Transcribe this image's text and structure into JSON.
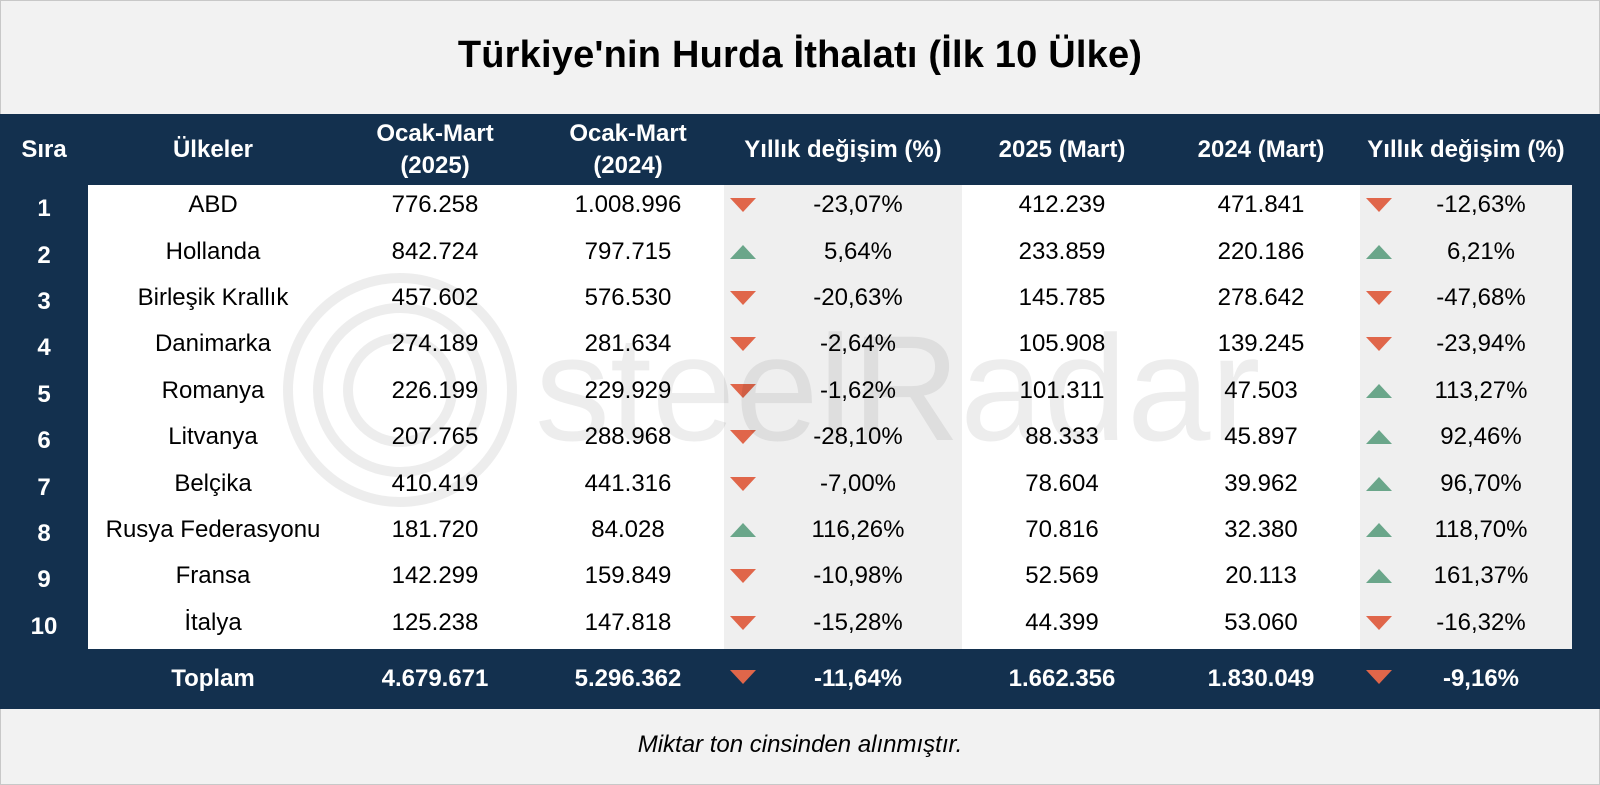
{
  "title": "Türkiye'nin Hurda İthalatı (İlk 10 Ülke)",
  "footnote": "Miktar ton cinsinden alınmıştır.",
  "watermark_text": "steelRadar",
  "colors": {
    "navy": "#13304e",
    "up": "#6aa68a",
    "down": "#e0664a",
    "stripe": "#efefef",
    "white": "#ffffff"
  },
  "headers": [
    "Sıra",
    "Ülkeler",
    "Ocak-Mart\n(2025)",
    "Ocak-Mart\n(2024)",
    "Yıllık değişim (%)",
    "2025 (Mart)",
    "2024 (Mart)",
    "Yıllık değişim (%)"
  ],
  "chart_data": {
    "type": "table",
    "title": "Türkiye'nin Hurda İthalatı (İlk 10 Ülke)",
    "unit_note": "Miktar ton cinsinden alınmıştır.",
    "rows": [
      {
        "rank": "1",
        "country": "ABD",
        "q_2025": "776.258",
        "q_2024": "1.008.996",
        "q_change": "-23,07%",
        "q_dir": "down",
        "m_2025": "412.239",
        "m_2024": "471.841",
        "m_change": "-12,63%",
        "m_dir": "down"
      },
      {
        "rank": "2",
        "country": "Hollanda",
        "q_2025": "842.724",
        "q_2024": "797.715",
        "q_change": "5,64%",
        "q_dir": "up",
        "m_2025": "233.859",
        "m_2024": "220.186",
        "m_change": "6,21%",
        "m_dir": "up"
      },
      {
        "rank": "3",
        "country": "Birleşik Krallık",
        "q_2025": "457.602",
        "q_2024": "576.530",
        "q_change": "-20,63%",
        "q_dir": "down",
        "m_2025": "145.785",
        "m_2024": "278.642",
        "m_change": "-47,68%",
        "m_dir": "down"
      },
      {
        "rank": "4",
        "country": "Danimarka",
        "q_2025": "274.189",
        "q_2024": "281.634",
        "q_change": "-2,64%",
        "q_dir": "down",
        "m_2025": "105.908",
        "m_2024": "139.245",
        "m_change": "-23,94%",
        "m_dir": "down"
      },
      {
        "rank": "5",
        "country": "Romanya",
        "q_2025": "226.199",
        "q_2024": "229.929",
        "q_change": "-1,62%",
        "q_dir": "down",
        "m_2025": "101.311",
        "m_2024": "47.503",
        "m_change": "113,27%",
        "m_dir": "up"
      },
      {
        "rank": "6",
        "country": "Litvanya",
        "q_2025": "207.765",
        "q_2024": "288.968",
        "q_change": "-28,10%",
        "q_dir": "down",
        "m_2025": "88.333",
        "m_2024": "45.897",
        "m_change": "92,46%",
        "m_dir": "up"
      },
      {
        "rank": "7",
        "country": "Belçika",
        "q_2025": "410.419",
        "q_2024": "441.316",
        "q_change": "-7,00%",
        "q_dir": "down",
        "m_2025": "78.604",
        "m_2024": "39.962",
        "m_change": "96,70%",
        "m_dir": "up"
      },
      {
        "rank": "8",
        "country": "Rusya Federasyonu",
        "q_2025": "181.720",
        "q_2024": "84.028",
        "q_change": "116,26%",
        "q_dir": "up",
        "m_2025": "70.816",
        "m_2024": "32.380",
        "m_change": "118,70%",
        "m_dir": "up"
      },
      {
        "rank": "9",
        "country": "Fransa",
        "q_2025": "142.299",
        "q_2024": "159.849",
        "q_change": "-10,98%",
        "q_dir": "down",
        "m_2025": "52.569",
        "m_2024": "20.113",
        "m_change": "161,37%",
        "m_dir": "up"
      },
      {
        "rank": "10",
        "country": "İtalya",
        "q_2025": "125.238",
        "q_2024": "147.818",
        "q_change": "-15,28%",
        "q_dir": "down",
        "m_2025": "44.399",
        "m_2024": "53.060",
        "m_change": "-16,32%",
        "m_dir": "down"
      }
    ],
    "total": {
      "label": "Toplam",
      "q_2025": "4.679.671",
      "q_2024": "5.296.362",
      "q_change": "-11,64%",
      "q_dir": "down",
      "m_2025": "1.662.356",
      "m_2024": "1.830.049",
      "m_change": "-9,16%",
      "m_dir": "down"
    }
  }
}
